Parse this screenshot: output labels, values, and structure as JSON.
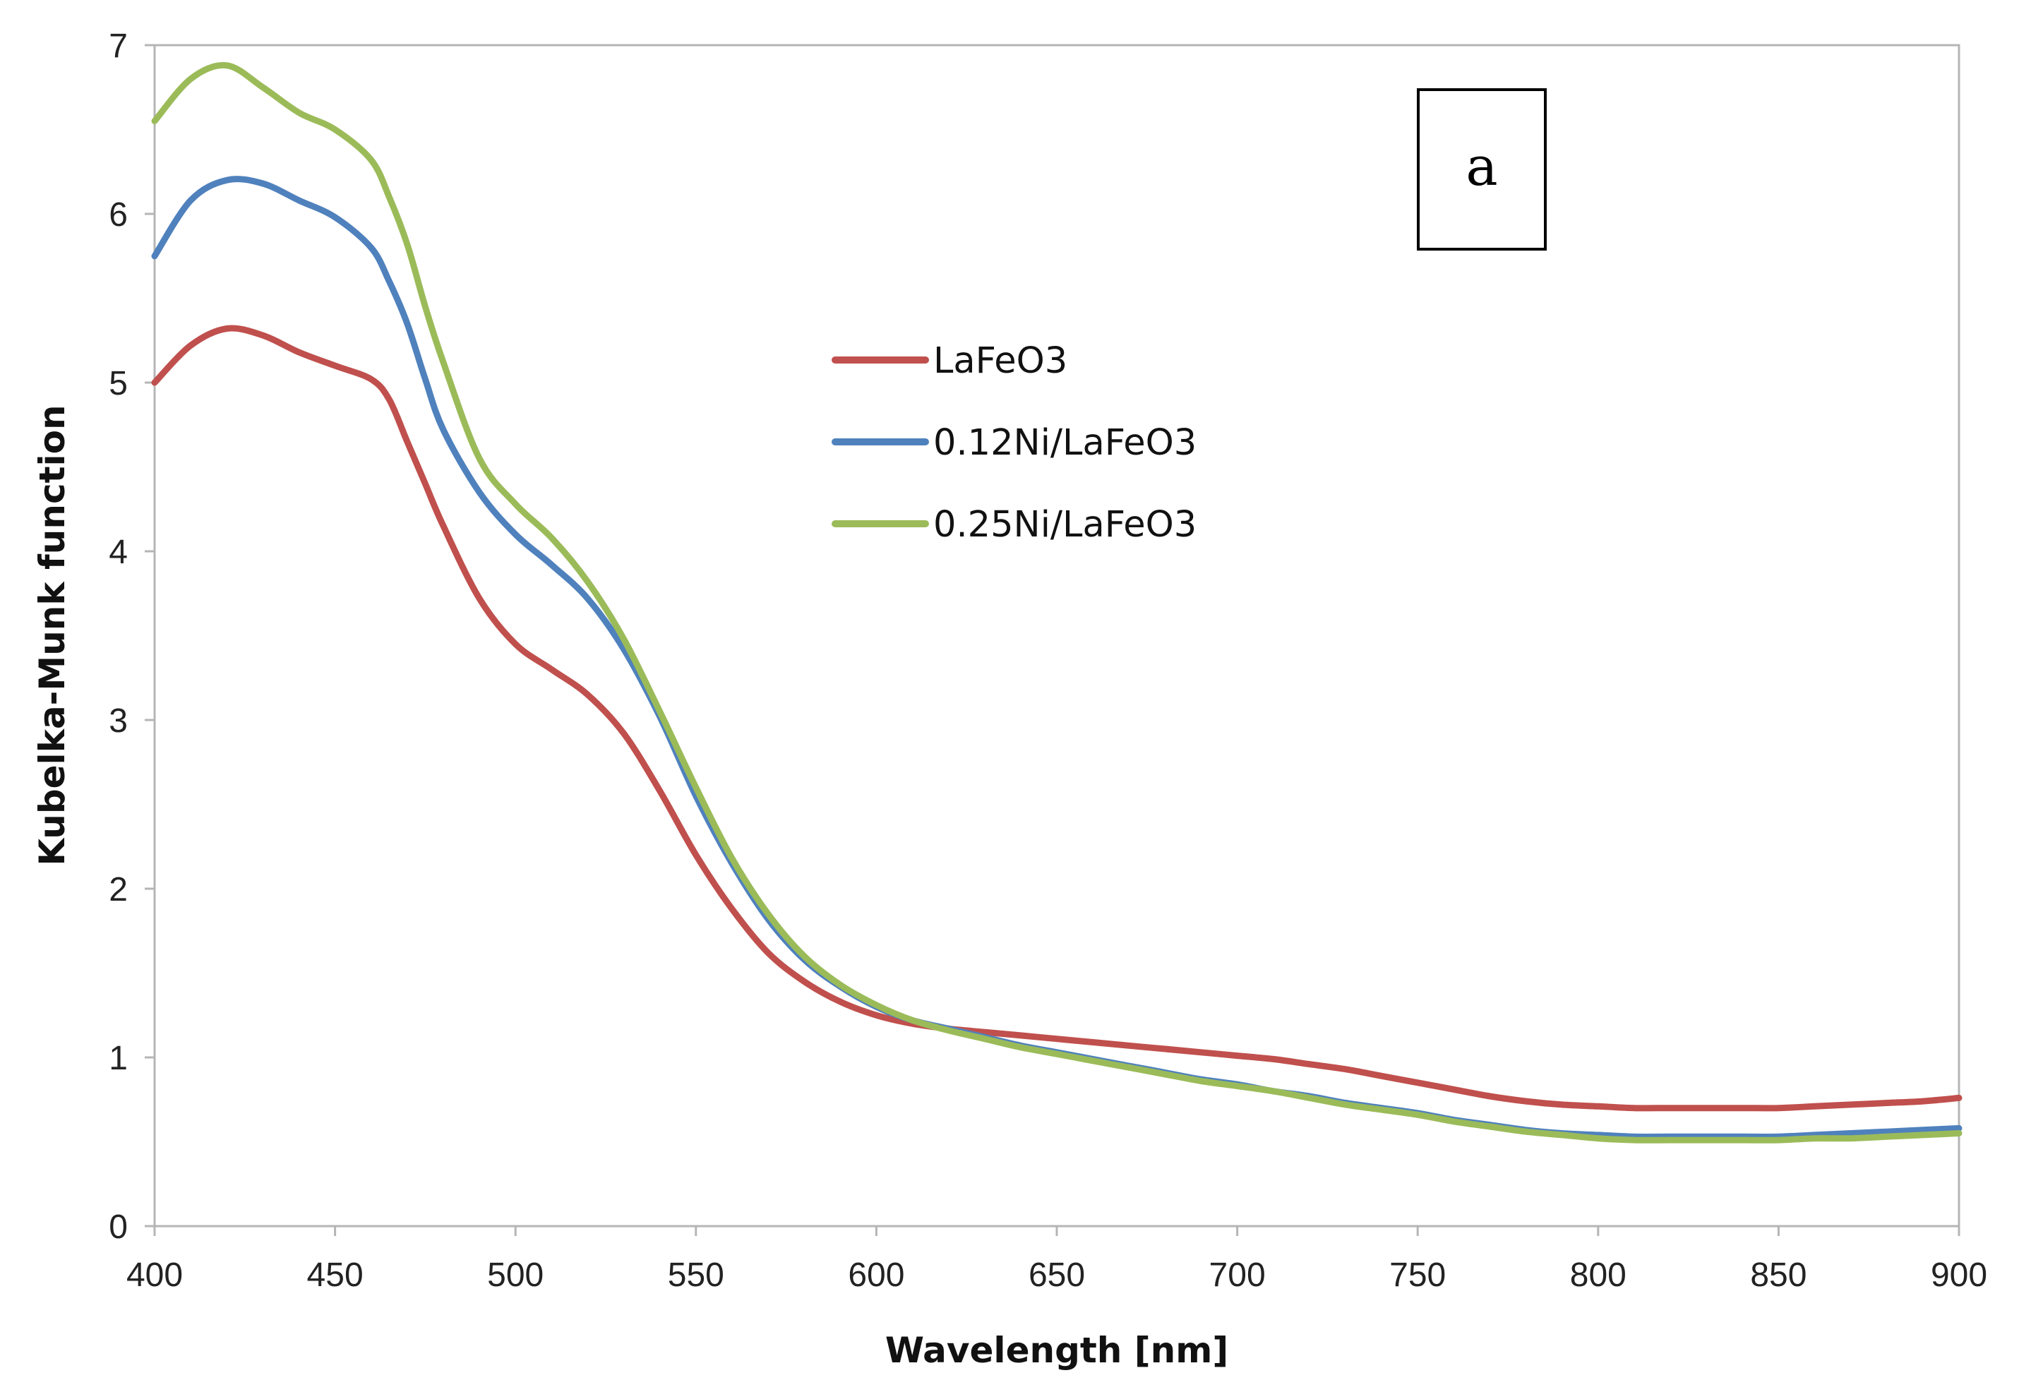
{
  "chart_data": {
    "type": "line",
    "title": "",
    "xlabel": "Wavelength [nm]",
    "ylabel": "Kubelka-Munk function",
    "xlim": [
      400,
      900
    ],
    "ylim": [
      0,
      7
    ],
    "xticks": [
      400,
      450,
      500,
      550,
      600,
      650,
      700,
      750,
      800,
      850,
      900
    ],
    "yticks": [
      0,
      1,
      2,
      3,
      4,
      5,
      6,
      7
    ],
    "grid": false,
    "legend_position": "center",
    "panel_label": "a",
    "series": [
      {
        "name": "LaFeO3",
        "color": "#C0504D",
        "x": [
          400,
          410,
          420,
          430,
          440,
          450,
          460,
          465,
          470,
          475,
          480,
          490,
          500,
          510,
          520,
          530,
          540,
          550,
          560,
          570,
          580,
          590,
          600,
          610,
          620,
          630,
          640,
          650,
          660,
          670,
          680,
          690,
          700,
          710,
          720,
          730,
          740,
          750,
          760,
          770,
          780,
          790,
          800,
          810,
          820,
          830,
          840,
          850,
          860,
          870,
          880,
          890,
          900
        ],
        "y": [
          5.0,
          5.22,
          5.32,
          5.28,
          5.18,
          5.1,
          5.02,
          4.9,
          4.65,
          4.4,
          4.15,
          3.72,
          3.45,
          3.3,
          3.15,
          2.92,
          2.58,
          2.2,
          1.88,
          1.62,
          1.45,
          1.33,
          1.25,
          1.2,
          1.17,
          1.15,
          1.13,
          1.11,
          1.09,
          1.07,
          1.05,
          1.03,
          1.01,
          0.99,
          0.96,
          0.93,
          0.89,
          0.85,
          0.81,
          0.77,
          0.74,
          0.72,
          0.71,
          0.7,
          0.7,
          0.7,
          0.7,
          0.7,
          0.71,
          0.72,
          0.73,
          0.74,
          0.76
        ]
      },
      {
        "name": "0.12Ni/LaFeO3",
        "color": "#4F81BD",
        "x": [
          400,
          410,
          420,
          430,
          440,
          450,
          460,
          465,
          470,
          475,
          480,
          490,
          500,
          510,
          520,
          530,
          540,
          550,
          560,
          570,
          580,
          590,
          600,
          610,
          620,
          630,
          640,
          650,
          660,
          670,
          680,
          690,
          700,
          710,
          720,
          730,
          740,
          750,
          760,
          770,
          780,
          790,
          800,
          810,
          820,
          830,
          840,
          850,
          860,
          870,
          880,
          890,
          900
        ],
        "y": [
          5.75,
          6.08,
          6.2,
          6.18,
          6.08,
          5.98,
          5.8,
          5.6,
          5.35,
          5.02,
          4.72,
          4.35,
          4.1,
          3.92,
          3.72,
          3.42,
          3.02,
          2.55,
          2.15,
          1.82,
          1.58,
          1.42,
          1.3,
          1.22,
          1.17,
          1.12,
          1.07,
          1.03,
          0.99,
          0.95,
          0.91,
          0.87,
          0.84,
          0.8,
          0.77,
          0.73,
          0.7,
          0.67,
          0.63,
          0.6,
          0.57,
          0.55,
          0.54,
          0.53,
          0.53,
          0.53,
          0.53,
          0.53,
          0.54,
          0.55,
          0.56,
          0.57,
          0.58
        ]
      },
      {
        "name": "0.25Ni/LaFeO3",
        "color": "#9BBB59",
        "x": [
          400,
          410,
          420,
          430,
          440,
          450,
          460,
          465,
          470,
          475,
          480,
          490,
          500,
          510,
          520,
          530,
          540,
          550,
          560,
          570,
          580,
          590,
          600,
          610,
          620,
          630,
          640,
          650,
          660,
          670,
          680,
          690,
          700,
          710,
          720,
          730,
          740,
          750,
          760,
          770,
          780,
          790,
          800,
          810,
          820,
          830,
          840,
          850,
          860,
          870,
          880,
          890,
          900
        ],
        "y": [
          6.55,
          6.8,
          6.88,
          6.75,
          6.6,
          6.5,
          6.32,
          6.1,
          5.82,
          5.45,
          5.12,
          4.55,
          4.28,
          4.08,
          3.82,
          3.48,
          3.05,
          2.6,
          2.18,
          1.85,
          1.6,
          1.43,
          1.31,
          1.22,
          1.16,
          1.11,
          1.06,
          1.02,
          0.98,
          0.94,
          0.9,
          0.86,
          0.83,
          0.8,
          0.76,
          0.72,
          0.69,
          0.66,
          0.62,
          0.59,
          0.56,
          0.54,
          0.52,
          0.51,
          0.51,
          0.51,
          0.51,
          0.51,
          0.52,
          0.52,
          0.53,
          0.54,
          0.55
        ]
      }
    ]
  }
}
